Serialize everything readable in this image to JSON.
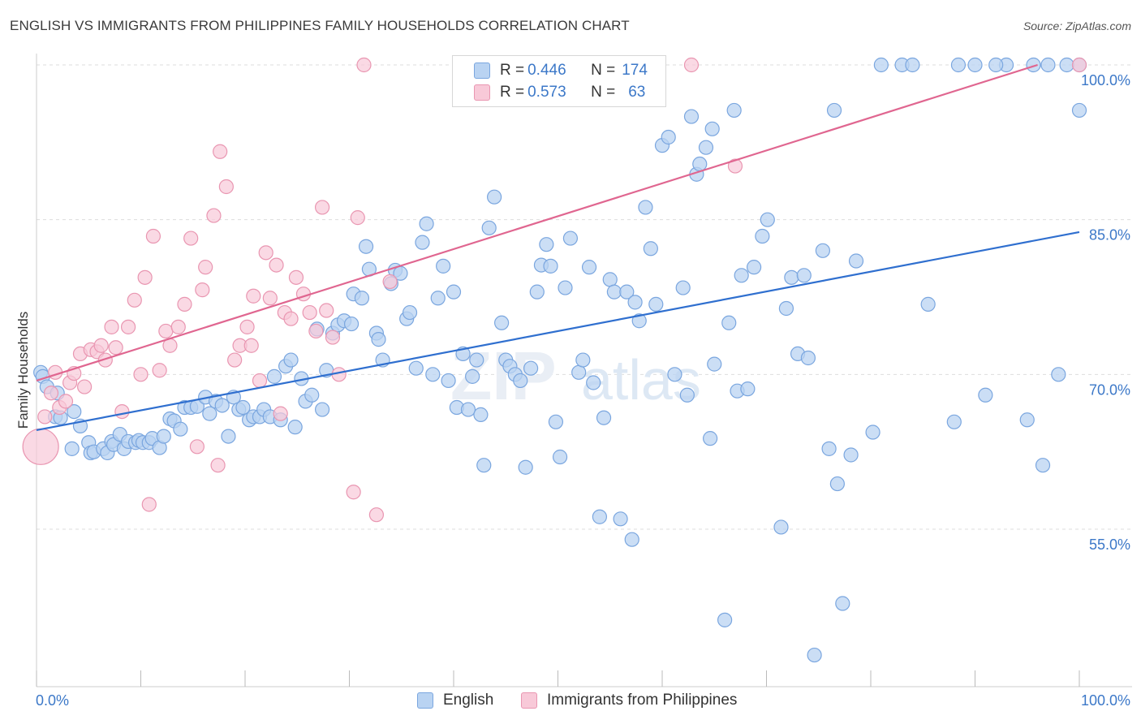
{
  "title": "ENGLISH VS IMMIGRANTS FROM PHILIPPINES FAMILY HOUSEHOLDS CORRELATION CHART",
  "source": "Source: ZipAtlas.com",
  "watermark": "ZIPatlas",
  "legend": {
    "rows": [
      {
        "r_label": "R = ",
        "r_value": "0.446",
        "n_label": "N = ",
        "n_value": "174"
      },
      {
        "r_label": "R = ",
        "r_value": "0.573",
        "n_label": "N = ",
        "n_value": "63"
      }
    ]
  },
  "bottom_legend": [
    "English",
    "Immigrants from Philippines"
  ],
  "colors": {
    "english_fill": "#b9d3f2",
    "english_stroke": "#7aa6df",
    "english_line": "#2f6fcf",
    "phil_fill": "#f8c9d8",
    "phil_stroke": "#e996b1",
    "phil_line": "#e06690",
    "axis_label": "#3c78c8",
    "grid": "#dddddd"
  },
  "chart_data": {
    "type": "scatter",
    "ylabel": "Family Households",
    "xlabel": "",
    "xlim": [
      0,
      100
    ],
    "ylim": [
      40,
      102
    ],
    "x_tick_labels": [
      "0.0%",
      "100.0%"
    ],
    "y_ticks": [
      55,
      70,
      85,
      100
    ],
    "y_tick_labels": [
      "55.0%",
      "70.0%",
      "85.0%",
      "100.0%"
    ],
    "grid": true,
    "series": [
      {
        "name": "English",
        "r": 0.446,
        "n": 174,
        "trend": {
          "x": [
            0,
            100
          ],
          "y": [
            64.6,
            83.8
          ]
        },
        "points": [
          [
            0.4,
            70.2
          ],
          [
            0.6,
            69.8
          ],
          [
            1.0,
            68.8
          ],
          [
            2.0,
            68.2
          ],
          [
            1.8,
            65.9
          ],
          [
            2.3,
            65.8
          ],
          [
            3.6,
            66.4
          ],
          [
            4.2,
            65.0
          ],
          [
            3.4,
            62.8
          ],
          [
            5.0,
            63.4
          ],
          [
            5.2,
            62.4
          ],
          [
            5.5,
            62.5
          ],
          [
            6.4,
            62.8
          ],
          [
            6.8,
            62.4
          ],
          [
            7.2,
            63.5
          ],
          [
            7.4,
            63.2
          ],
          [
            8.0,
            64.2
          ],
          [
            8.4,
            62.8
          ],
          [
            8.8,
            63.5
          ],
          [
            9.5,
            63.4
          ],
          [
            9.8,
            63.6
          ],
          [
            10.2,
            63.4
          ],
          [
            10.8,
            63.4
          ],
          [
            11.1,
            63.8
          ],
          [
            11.8,
            62.9
          ],
          [
            12.2,
            64.0
          ],
          [
            12.8,
            65.7
          ],
          [
            13.2,
            65.5
          ],
          [
            13.8,
            64.7
          ],
          [
            14.2,
            66.8
          ],
          [
            14.8,
            66.8
          ],
          [
            15.4,
            66.9
          ],
          [
            16.2,
            67.8
          ],
          [
            16.6,
            66.2
          ],
          [
            17.2,
            67.4
          ],
          [
            17.8,
            67.0
          ],
          [
            18.4,
            64.0
          ],
          [
            18.9,
            67.8
          ],
          [
            19.4,
            66.6
          ],
          [
            19.8,
            66.8
          ],
          [
            20.4,
            65.6
          ],
          [
            20.8,
            65.9
          ],
          [
            21.4,
            65.9
          ],
          [
            21.8,
            66.6
          ],
          [
            22.4,
            65.9
          ],
          [
            22.8,
            69.8
          ],
          [
            23.4,
            65.6
          ],
          [
            23.9,
            70.8
          ],
          [
            24.4,
            71.4
          ],
          [
            24.8,
            64.9
          ],
          [
            25.4,
            69.6
          ],
          [
            25.8,
            67.4
          ],
          [
            26.4,
            68.0
          ],
          [
            26.9,
            74.4
          ],
          [
            27.4,
            66.6
          ],
          [
            27.8,
            70.4
          ],
          [
            28.4,
            74.0
          ],
          [
            28.9,
            74.8
          ],
          [
            29.5,
            75.2
          ],
          [
            30.2,
            74.9
          ],
          [
            30.4,
            77.8
          ],
          [
            31.2,
            77.4
          ],
          [
            31.6,
            82.4
          ],
          [
            31.9,
            80.2
          ],
          [
            32.6,
            74.0
          ],
          [
            32.8,
            73.4
          ],
          [
            33.2,
            71.4
          ],
          [
            34.0,
            78.8
          ],
          [
            34.4,
            80.1
          ],
          [
            34.9,
            79.8
          ],
          [
            35.5,
            75.4
          ],
          [
            35.8,
            76.0
          ],
          [
            36.4,
            70.6
          ],
          [
            37.0,
            82.8
          ],
          [
            37.4,
            84.6
          ],
          [
            38.0,
            70.0
          ],
          [
            38.5,
            77.4
          ],
          [
            39.0,
            80.5
          ],
          [
            39.5,
            69.4
          ],
          [
            40.0,
            78.0
          ],
          [
            40.3,
            66.8
          ],
          [
            40.9,
            72.0
          ],
          [
            41.4,
            66.6
          ],
          [
            41.8,
            69.8
          ],
          [
            42.2,
            71.4
          ],
          [
            42.6,
            66.1
          ],
          [
            42.9,
            61.2
          ],
          [
            43.4,
            84.2
          ],
          [
            43.9,
            87.2
          ],
          [
            44.6,
            75.0
          ],
          [
            45.0,
            71.4
          ],
          [
            45.4,
            70.8
          ],
          [
            45.9,
            70.0
          ],
          [
            46.4,
            69.4
          ],
          [
            46.9,
            61.0
          ],
          [
            47.4,
            70.6
          ],
          [
            48.0,
            78.0
          ],
          [
            48.4,
            80.6
          ],
          [
            48.9,
            82.6
          ],
          [
            49.3,
            80.5
          ],
          [
            49.8,
            65.4
          ],
          [
            50.2,
            62.0
          ],
          [
            50.7,
            78.4
          ],
          [
            51.2,
            83.2
          ],
          [
            52.0,
            70.2
          ],
          [
            52.4,
            71.4
          ],
          [
            53.0,
            80.4
          ],
          [
            53.4,
            69.2
          ],
          [
            54.0,
            56.2
          ],
          [
            54.4,
            65.8
          ],
          [
            55.0,
            79.2
          ],
          [
            55.4,
            78.0
          ],
          [
            56.0,
            56.0
          ],
          [
            56.6,
            78.0
          ],
          [
            57.1,
            54.0
          ],
          [
            57.4,
            77.0
          ],
          [
            57.8,
            75.2
          ],
          [
            58.4,
            86.2
          ],
          [
            58.9,
            82.2
          ],
          [
            59.4,
            76.8
          ],
          [
            60.0,
            92.2
          ],
          [
            60.6,
            93.0
          ],
          [
            61.2,
            70.0
          ],
          [
            62.0,
            78.4
          ],
          [
            62.4,
            68.0
          ],
          [
            62.8,
            95.0
          ],
          [
            63.3,
            89.4
          ],
          [
            63.6,
            90.4
          ],
          [
            64.2,
            92.0
          ],
          [
            64.8,
            93.8
          ],
          [
            64.6,
            63.8
          ],
          [
            65.0,
            71.0
          ],
          [
            66.0,
            46.2
          ],
          [
            66.4,
            75.0
          ],
          [
            66.9,
            95.6
          ],
          [
            67.2,
            68.4
          ],
          [
            67.6,
            79.6
          ],
          [
            68.2,
            68.6
          ],
          [
            68.8,
            80.4
          ],
          [
            69.6,
            83.4
          ],
          [
            70.1,
            85.0
          ],
          [
            71.4,
            55.2
          ],
          [
            71.9,
            76.4
          ],
          [
            72.4,
            79.4
          ],
          [
            73.0,
            72.0
          ],
          [
            73.6,
            79.6
          ],
          [
            74.0,
            71.6
          ],
          [
            74.6,
            42.8
          ],
          [
            75.4,
            82.0
          ],
          [
            76.0,
            62.8
          ],
          [
            76.5,
            95.6
          ],
          [
            76.8,
            59.4
          ],
          [
            77.3,
            47.8
          ],
          [
            78.1,
            62.2
          ],
          [
            78.6,
            81.0
          ],
          [
            80.2,
            64.4
          ],
          [
            81.0,
            100.0
          ],
          [
            83.0,
            100.0
          ],
          [
            84.0,
            100.0
          ],
          [
            85.5,
            76.8
          ],
          [
            88.0,
            65.4
          ],
          [
            88.4,
            100.0
          ],
          [
            90.0,
            100.0
          ],
          [
            91.0,
            68.0
          ],
          [
            93.0,
            100.0
          ],
          [
            95.0,
            65.6
          ],
          [
            96.5,
            61.2
          ],
          [
            97.0,
            100.0
          ],
          [
            98.0,
            70.0
          ],
          [
            100.0,
            100.0
          ],
          [
            100.0,
            95.6
          ],
          [
            98.8,
            100.0
          ],
          [
            95.6,
            100.0
          ],
          [
            92.0,
            100.0
          ]
        ]
      },
      {
        "name": "Immigrants from Philippines",
        "r": 0.573,
        "n": 63,
        "trend": {
          "x": [
            0,
            96.0
          ],
          "y": [
            69.4,
            100.0
          ]
        },
        "points": [
          [
            0.4,
            63.0
          ],
          [
            0.8,
            65.9
          ],
          [
            1.4,
            68.2
          ],
          [
            1.8,
            70.2
          ],
          [
            2.2,
            66.8
          ],
          [
            2.8,
            67.4
          ],
          [
            3.2,
            69.2
          ],
          [
            3.6,
            70.1
          ],
          [
            4.2,
            72.0
          ],
          [
            4.6,
            68.8
          ],
          [
            5.2,
            72.4
          ],
          [
            5.8,
            72.2
          ],
          [
            6.2,
            72.8
          ],
          [
            6.6,
            71.4
          ],
          [
            7.2,
            74.6
          ],
          [
            7.6,
            72.6
          ],
          [
            8.2,
            66.4
          ],
          [
            8.8,
            74.6
          ],
          [
            9.4,
            77.2
          ],
          [
            10.0,
            70.0
          ],
          [
            10.4,
            79.4
          ],
          [
            10.8,
            57.4
          ],
          [
            11.2,
            83.4
          ],
          [
            11.8,
            70.4
          ],
          [
            12.4,
            74.2
          ],
          [
            12.8,
            72.8
          ],
          [
            13.6,
            74.6
          ],
          [
            14.2,
            76.8
          ],
          [
            14.8,
            83.2
          ],
          [
            15.4,
            63.0
          ],
          [
            15.9,
            78.2
          ],
          [
            16.2,
            80.4
          ],
          [
            17.0,
            85.4
          ],
          [
            17.4,
            61.2
          ],
          [
            17.6,
            91.6
          ],
          [
            18.2,
            88.2
          ],
          [
            19.0,
            71.4
          ],
          [
            19.5,
            72.8
          ],
          [
            20.2,
            74.6
          ],
          [
            20.6,
            72.8
          ],
          [
            20.8,
            77.6
          ],
          [
            21.4,
            69.4
          ],
          [
            22.0,
            81.8
          ],
          [
            22.4,
            77.4
          ],
          [
            23.0,
            80.6
          ],
          [
            23.4,
            66.2
          ],
          [
            23.8,
            76.0
          ],
          [
            24.4,
            75.4
          ],
          [
            24.9,
            79.4
          ],
          [
            25.6,
            77.8
          ],
          [
            26.2,
            76.0
          ],
          [
            26.8,
            74.2
          ],
          [
            27.4,
            86.2
          ],
          [
            27.8,
            76.2
          ],
          [
            28.4,
            73.6
          ],
          [
            29.0,
            70.0
          ],
          [
            30.4,
            58.6
          ],
          [
            30.8,
            85.2
          ],
          [
            31.4,
            100.0
          ],
          [
            32.6,
            56.4
          ],
          [
            33.9,
            79.0
          ],
          [
            62.8,
            100.0
          ],
          [
            67.0,
            90.2
          ],
          [
            100.0,
            100.0
          ]
        ]
      }
    ]
  }
}
